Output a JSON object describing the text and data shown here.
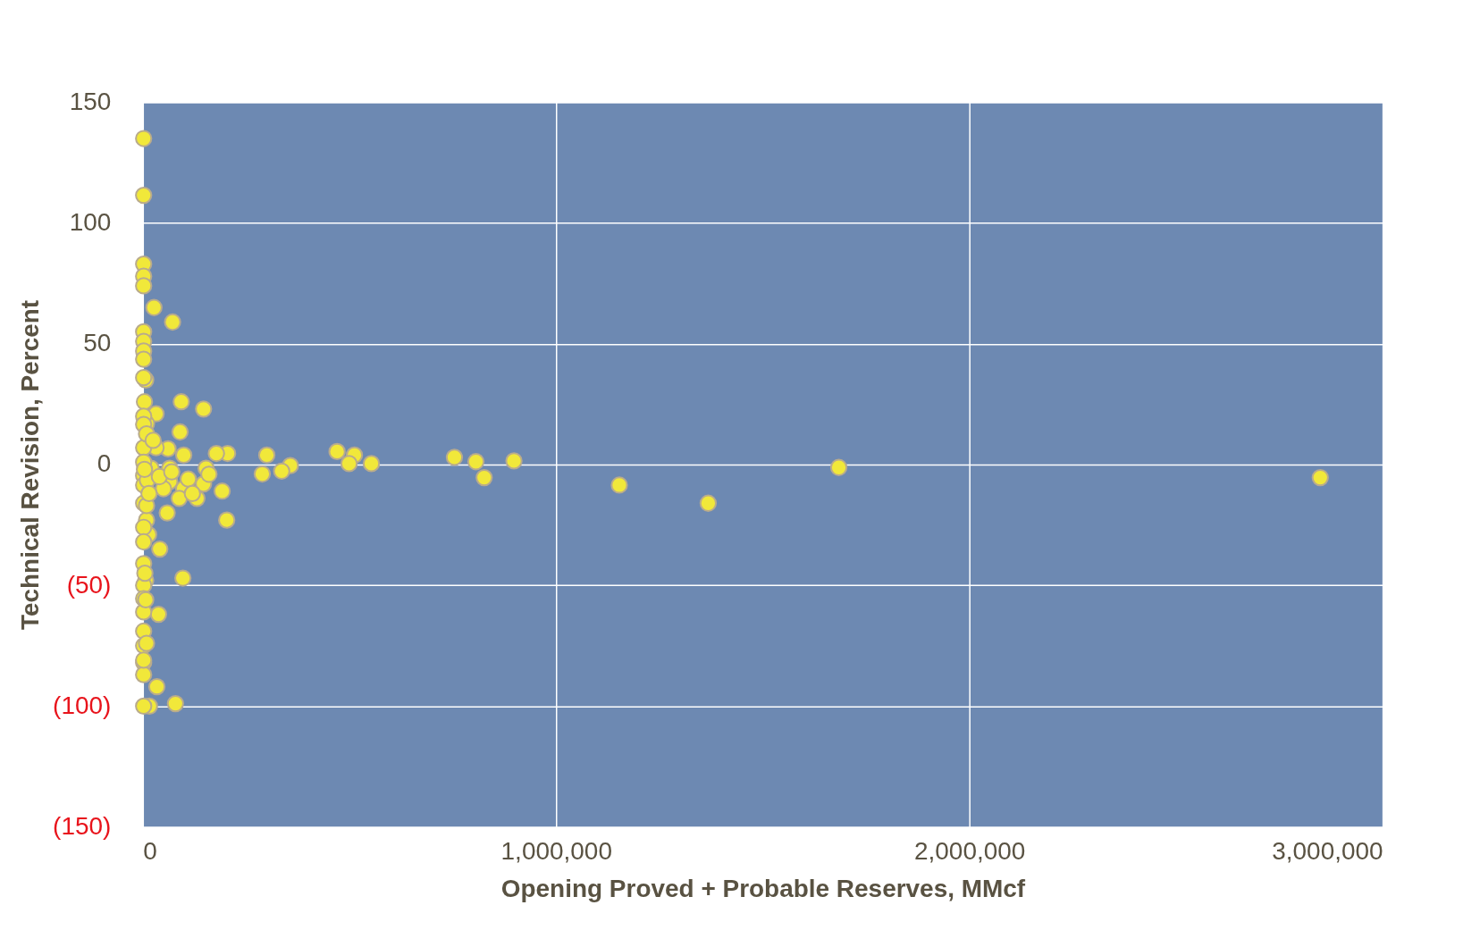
{
  "chart_data": {
    "type": "scatter",
    "xlabel": "Opening Proved + Probable Reserves, MMcf",
    "ylabel": "Technical Revision, Percent",
    "xlim": [
      0,
      3000000
    ],
    "xticks": [
      {
        "value": 0,
        "label": "0"
      },
      {
        "value": 1000000,
        "label": "1,000,000"
      },
      {
        "value": 2000000,
        "label": "2,000,000"
      },
      {
        "value": 3000000,
        "label": "3,000,000"
      }
    ],
    "ylim": [
      -150,
      150
    ],
    "yticks": [
      {
        "value": -150,
        "label": "(150)"
      },
      {
        "value": -100,
        "label": "(100)"
      },
      {
        "value": -50,
        "label": "(50)"
      },
      0,
      50,
      100,
      150
    ],
    "grid": true,
    "marker": "circle",
    "series": [
      {
        "color": "#f1e83a",
        "x": [
          2849000,
          1684000,
          1368000,
          1153000,
          898000,
          826000,
          806000,
          754000,
          553000,
          512000,
          499000,
          470000,
          357000,
          336000,
          300000,
          289000,
          205000,
          203000,
          192000,
          178000,
          147000,
          153000,
          147000,
          131000,
          99000,
          93000,
          90000,
          97000,
          99000,
          88000,
          72000,
          79000,
          65000,
          65000,
          59000,
          61000,
          50000,
          41000,
          38000,
          34000,
          27000,
          32000,
          32000,
          20000,
          16000,
          14000,
          9000,
          7000,
          9000,
          7000,
          2000,
          2000,
          2000,
          2000,
          2000,
          2000,
          2000,
          2000,
          2000,
          2000,
          4000,
          2000,
          2000,
          2000,
          2000,
          2000,
          2000,
          2000,
          2000,
          2000,
          2000,
          2000,
          2000,
          2000,
          2000,
          2000,
          2000,
          2000,
          2000,
          2000,
          9000,
          7000,
          5000,
          9000,
          11000,
          9000,
          4000,
          40000,
          70000,
          110000,
          160000,
          25000,
          15000,
          120000
        ],
        "values": [
          -5.4,
          -1.2,
          -16,
          -8.5,
          1.5,
          -5.4,
          1.2,
          3,
          0.4,
          3.9,
          0.4,
          5.4,
          -0.4,
          -2.7,
          3.9,
          -3.9,
          4.6,
          -23,
          -11,
          4.6,
          23,
          -1.5,
          -8,
          -14,
          3.9,
          26,
          13.5,
          -47,
          -10,
          -14,
          59,
          -99,
          -1.5,
          -7,
          -20,
          6.5,
          -10,
          -35,
          -62,
          -92,
          65,
          21,
          7,
          -1.5,
          -100,
          -29,
          -23,
          35,
          17,
          -48,
          135,
          111.5,
          83,
          78,
          74,
          55,
          51,
          47,
          43.6,
          36,
          26,
          20,
          16.6,
          7,
          1,
          -4.6,
          -8.5,
          -16,
          -26,
          -32,
          -41,
          -50,
          -55.5,
          -61,
          -69,
          -75,
          -82,
          -87,
          -100,
          -81,
          -74,
          -56,
          -45,
          -17,
          -6.5,
          12.7,
          -2,
          -5,
          -3,
          -6,
          -4,
          10,
          -12,
          -12
        ]
      }
    ]
  }
}
